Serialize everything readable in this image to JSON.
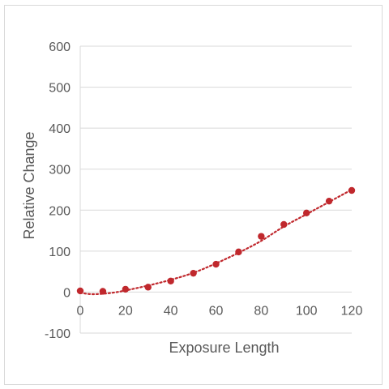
{
  "chart_data": {
    "type": "scatter",
    "title": "",
    "xlabel": "Exposure Length",
    "ylabel": "Relative Change",
    "xlim": [
      0,
      120
    ],
    "ylim": [
      -100,
      600
    ],
    "x_ticks": [
      "0",
      "20",
      "40",
      "60",
      "80",
      "100",
      "120"
    ],
    "y_ticks": [
      "-100",
      "0",
      "100",
      "200",
      "300",
      "400",
      "500",
      "600"
    ],
    "grid": "horizontal",
    "legend": "none",
    "series": [
      {
        "x": [
          0,
          10,
          20,
          30,
          40,
          50,
          60,
          70,
          80,
          90,
          100,
          110,
          120
        ],
        "values": [
          3,
          2,
          7,
          12,
          27,
          46,
          68,
          98,
          136,
          165,
          193,
          222,
          248
        ]
      }
    ],
    "trendline": {
      "style": "dotted",
      "x": [
        0,
        5,
        10,
        15,
        20,
        30,
        40,
        50,
        60,
        70,
        80,
        90,
        100,
        110,
        120
      ],
      "values": [
        -2,
        -5,
        -4,
        -1,
        4,
        16,
        30,
        47,
        70,
        96,
        125,
        160,
        190,
        220,
        250
      ]
    },
    "colors": {
      "marker": "#c0282d",
      "trendline": "#c0282d",
      "grid": "#d9d9d9",
      "text": "#595959"
    }
  }
}
